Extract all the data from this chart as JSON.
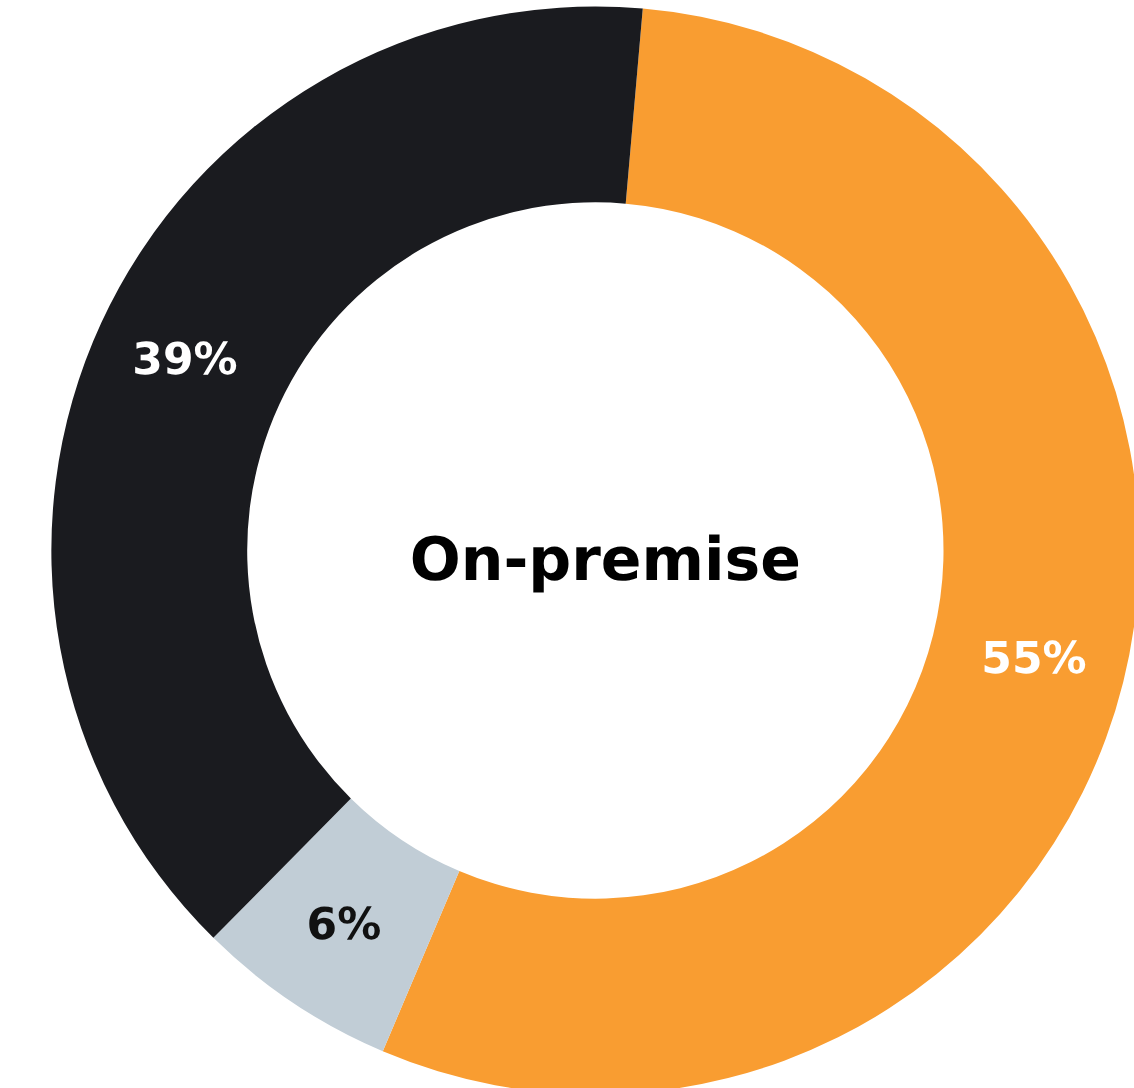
{
  "chart_data": {
    "type": "donut",
    "title": "On-premise",
    "categories": [
      null,
      null,
      null
    ],
    "values": [
      55,
      6,
      39
    ],
    "value_labels": [
      "55%",
      "6%",
      "39%"
    ],
    "colors": [
      "#f99d31",
      "#c1cdd6",
      "#1a1b1f"
    ]
  }
}
